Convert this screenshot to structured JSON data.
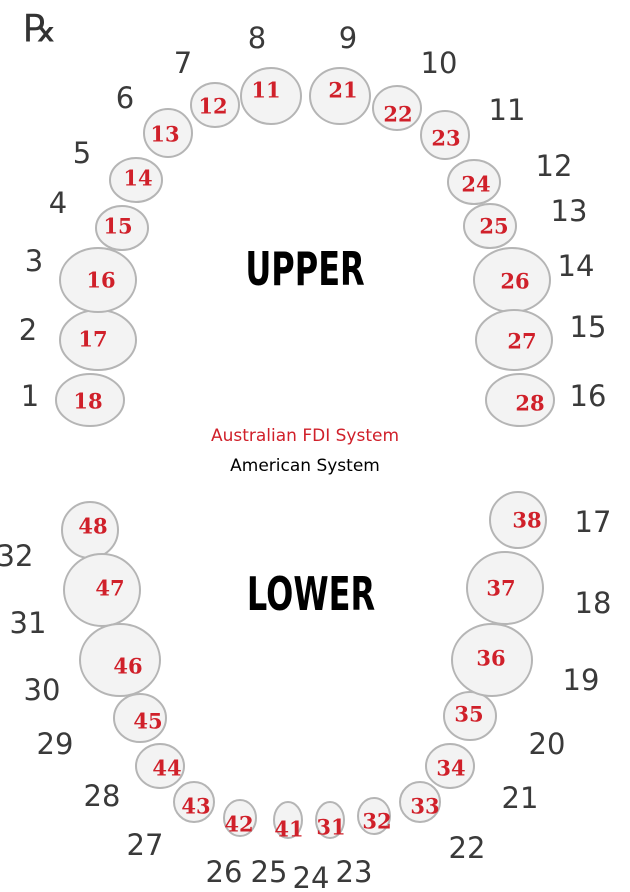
{
  "header": {
    "symbol": "℞"
  },
  "labels": {
    "upper": "UPPER",
    "lower": "LOWER"
  },
  "legend": {
    "fdi": "Australian FDI System",
    "american": "American System"
  },
  "upper_teeth": [
    {
      "fdi": "18",
      "american": "1"
    },
    {
      "fdi": "17",
      "american": "2"
    },
    {
      "fdi": "16",
      "american": "3"
    },
    {
      "fdi": "15",
      "american": "4"
    },
    {
      "fdi": "14",
      "american": "5"
    },
    {
      "fdi": "13",
      "american": "6"
    },
    {
      "fdi": "12",
      "american": "7"
    },
    {
      "fdi": "11",
      "american": "8"
    },
    {
      "fdi": "21",
      "american": "9"
    },
    {
      "fdi": "22",
      "american": "10"
    },
    {
      "fdi": "23",
      "american": "11"
    },
    {
      "fdi": "24",
      "american": "12"
    },
    {
      "fdi": "25",
      "american": "13"
    },
    {
      "fdi": "26",
      "american": "14"
    },
    {
      "fdi": "27",
      "american": "15"
    },
    {
      "fdi": "28",
      "american": "16"
    }
  ],
  "lower_teeth": [
    {
      "fdi": "48",
      "american": "32"
    },
    {
      "fdi": "47",
      "american": "31"
    },
    {
      "fdi": "46",
      "american": "30"
    },
    {
      "fdi": "45",
      "american": "29"
    },
    {
      "fdi": "44",
      "american": "28"
    },
    {
      "fdi": "43",
      "american": "27"
    },
    {
      "fdi": "42",
      "american": "26"
    },
    {
      "fdi": "41",
      "american": "25"
    },
    {
      "fdi": "31",
      "american": "24"
    },
    {
      "fdi": "32",
      "american": "23"
    },
    {
      "fdi": "33",
      "american": "22"
    },
    {
      "fdi": "34",
      "american": "21"
    },
    {
      "fdi": "35",
      "american": "20"
    },
    {
      "fdi": "36",
      "american": "19"
    },
    {
      "fdi": "37",
      "american": "18"
    },
    {
      "fdi": "38",
      "american": "17"
    }
  ]
}
